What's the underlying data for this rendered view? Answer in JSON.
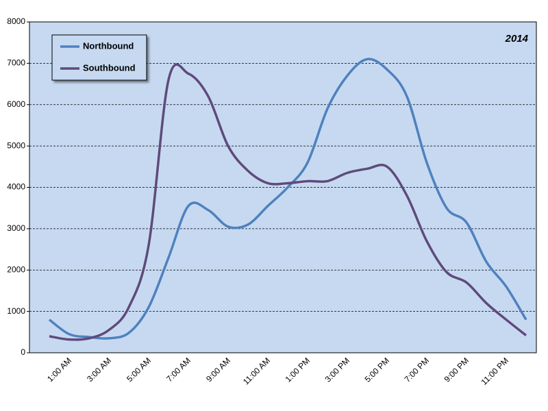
{
  "chart_data": {
    "type": "line",
    "annotation": "2014",
    "categories": [
      null,
      "1:00 AM",
      null,
      "3:00 AM",
      null,
      "5:00 AM",
      null,
      "7:00 AM",
      null,
      "9:00 AM",
      null,
      "11:00 AM",
      null,
      "1:00 PM",
      null,
      "3:00 PM",
      null,
      "5:00 PM",
      null,
      "7:00 PM",
      null,
      "9:00 PM",
      null,
      "11:00 PM",
      null
    ],
    "series": [
      {
        "name": "Northbound",
        "color": "#4f81bd",
        "values": [
          800,
          450,
          380,
          350,
          480,
          1100,
          2300,
          3550,
          3450,
          3050,
          3100,
          3550,
          4000,
          4600,
          5900,
          6700,
          7100,
          6850,
          6200,
          4600,
          3500,
          3150,
          2200,
          1600,
          800
        ]
      },
      {
        "name": "Southbound",
        "color": "#5f4a7b",
        "values": [
          400,
          320,
          350,
          550,
          1100,
          2600,
          6600,
          6750,
          6200,
          5000,
          4400,
          4100,
          4100,
          4150,
          4150,
          4350,
          4450,
          4500,
          3800,
          2700,
          1950,
          1700,
          1200,
          800,
          420
        ]
      }
    ],
    "ylim": [
      0,
      8000
    ],
    "yticks": [
      0,
      1000,
      2000,
      3000,
      4000,
      5000,
      6000,
      7000,
      8000
    ],
    "grid": true,
    "legend": "top-left"
  }
}
